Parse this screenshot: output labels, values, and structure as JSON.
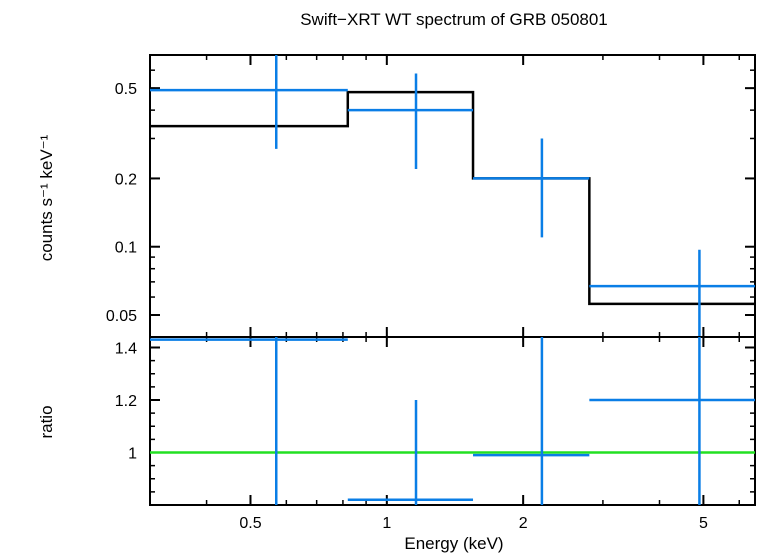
{
  "chart_data": {
    "type": "step",
    "title": "Swift−XRT WT spectrum of GRB 050801",
    "xlabel": "Energy (keV)",
    "xscale": "log",
    "xlim": [
      0.3,
      6.5
    ],
    "x_ticks": [
      {
        "value": 0.5,
        "label": "0.5"
      },
      {
        "value": 1,
        "label": "1"
      },
      {
        "value": 2,
        "label": "2"
      },
      {
        "value": 5,
        "label": "5"
      }
    ],
    "panels": [
      {
        "name": "spectrum",
        "ylabel": "counts s⁻¹ keV⁻¹",
        "yscale": "log",
        "ylim": [
          0.04,
          0.7
        ],
        "y_ticks": [
          {
            "value": 0.05,
            "label": "0.05"
          },
          {
            "value": 0.1,
            "label": "0.1"
          },
          {
            "value": 0.2,
            "label": "0.2"
          },
          {
            "value": 0.5,
            "label": "0.5"
          }
        ],
        "data": [
          {
            "x": 0.57,
            "xlo": 0.3,
            "xhi": 0.82,
            "y": 0.49,
            "ylo": 0.27,
            "yhi": 0.7
          },
          {
            "x": 1.16,
            "xlo": 0.82,
            "xhi": 1.55,
            "y": 0.4,
            "ylo": 0.22,
            "yhi": 0.58
          },
          {
            "x": 2.2,
            "xlo": 1.55,
            "xhi": 2.8,
            "y": 0.2,
            "ylo": 0.11,
            "yhi": 0.3
          },
          {
            "x": 4.9,
            "xlo": 2.8,
            "xhi": 6.5,
            "y": 0.067,
            "ylo": 0.036,
            "yhi": 0.097
          }
        ],
        "model": [
          {
            "xlo": 0.3,
            "xhi": 0.82,
            "y": 0.34
          },
          {
            "xlo": 0.82,
            "xhi": 1.55,
            "y": 0.48
          },
          {
            "xlo": 1.55,
            "xhi": 2.8,
            "y": 0.2
          },
          {
            "xlo": 2.8,
            "xhi": 6.5,
            "y": 0.056
          }
        ]
      },
      {
        "name": "ratio",
        "ylabel": "ratio",
        "yscale": "linear",
        "ylim": [
          0.8,
          1.44
        ],
        "y_ticks": [
          {
            "value": 1,
            "label": "1"
          },
          {
            "value": 1.2,
            "label": "1.2"
          },
          {
            "value": 1.4,
            "label": "1.4"
          }
        ],
        "reference_line": 1,
        "data": [
          {
            "x": 0.57,
            "xlo": 0.3,
            "xhi": 0.82,
            "y": 1.43,
            "ylo": 0.8,
            "yhi": 1.44
          },
          {
            "x": 1.16,
            "xlo": 0.82,
            "xhi": 1.55,
            "y": 0.82,
            "ylo": 0.8,
            "yhi": 1.2
          },
          {
            "x": 2.2,
            "xlo": 1.55,
            "xhi": 2.8,
            "y": 0.99,
            "ylo": 0.8,
            "yhi": 1.44
          },
          {
            "x": 4.9,
            "xlo": 2.8,
            "xhi": 6.5,
            "y": 1.2,
            "ylo": 0.8,
            "yhi": 1.44
          }
        ]
      }
    ],
    "colors": {
      "data": "#0a7ee6",
      "model": "#000000",
      "reference": "#22e022",
      "axes": "#000000"
    }
  }
}
